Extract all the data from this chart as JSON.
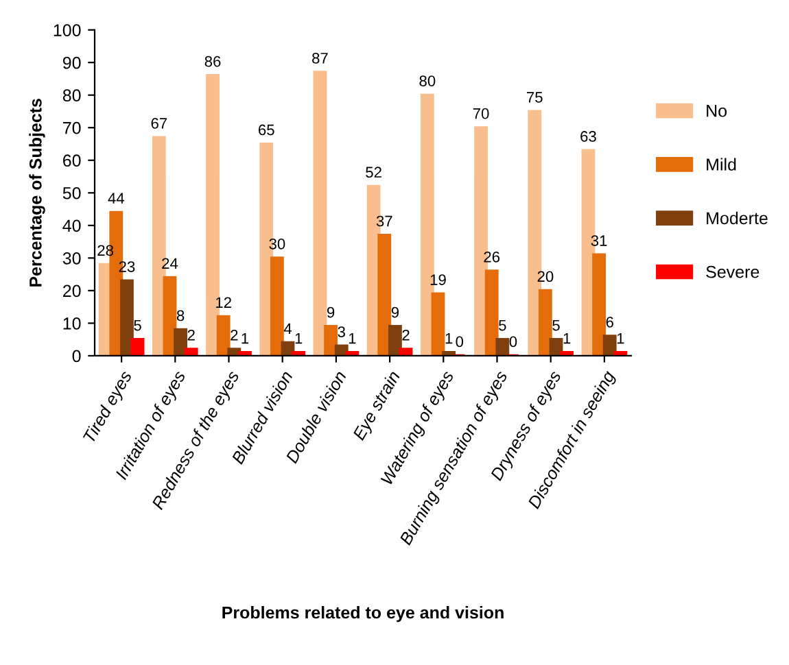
{
  "chart_data": {
    "type": "bar",
    "xlabel": "Problems related to eye and vision",
    "ylabel": "Percentage of Subjects",
    "categories": [
      "Tired eyes",
      "Irritation of eyes",
      "Redness of the eyes",
      "Blurred vision",
      "Double vision",
      "Eye strain",
      "Watering of eyes",
      "Burning sensation of eyes",
      "Dryness of eyes",
      "Discomfort in seeing"
    ],
    "series": [
      {
        "name": "No",
        "color": "#f9be8e",
        "values": [
          28,
          67,
          86,
          65,
          87,
          52,
          80,
          70,
          75,
          63
        ]
      },
      {
        "name": "Mild",
        "color": "#e46c0a",
        "values": [
          44,
          24,
          12,
          30,
          9,
          37,
          19,
          26,
          20,
          31
        ]
      },
      {
        "name": "Moderte",
        "color": "#7f3f0f",
        "values": [
          23,
          8,
          2,
          4,
          3,
          9,
          1,
          5,
          5,
          6
        ]
      },
      {
        "name": "Severe",
        "color": "#ff0000",
        "values": [
          5,
          2,
          1,
          1,
          1,
          2,
          0,
          0,
          1,
          1
        ]
      }
    ],
    "ylim": [
      0,
      100
    ],
    "yticks": [
      0,
      10,
      20,
      30,
      40,
      50,
      60,
      70,
      80,
      90,
      100
    ],
    "data_labels": true,
    "legend": "right",
    "grid": false
  }
}
